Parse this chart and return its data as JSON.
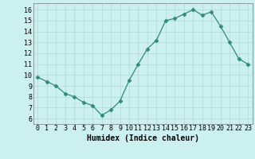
{
  "x": [
    0,
    1,
    2,
    3,
    4,
    5,
    6,
    7,
    8,
    9,
    10,
    11,
    12,
    13,
    14,
    15,
    16,
    17,
    18,
    19,
    20,
    21,
    22,
    23
  ],
  "y": [
    9.8,
    9.4,
    9.0,
    8.3,
    8.0,
    7.5,
    7.2,
    6.3,
    6.8,
    7.6,
    9.5,
    11.0,
    12.4,
    13.2,
    15.0,
    15.2,
    15.6,
    16.0,
    15.5,
    15.8,
    14.5,
    13.0,
    11.5,
    11.0
  ],
  "line_color": "#2e8b7a",
  "marker": "D",
  "marker_size": 2.5,
  "bg_color": "#ccefef",
  "grid_color": "#b0d8d8",
  "xlabel": "Humidex (Indice chaleur)",
  "xlabel_fontsize": 7,
  "ylabel_ticks": [
    6,
    7,
    8,
    9,
    10,
    11,
    12,
    13,
    14,
    15,
    16
  ],
  "xlim": [
    -0.5,
    23.5
  ],
  "ylim": [
    5.5,
    16.6
  ],
  "tick_fontsize": 6.0
}
